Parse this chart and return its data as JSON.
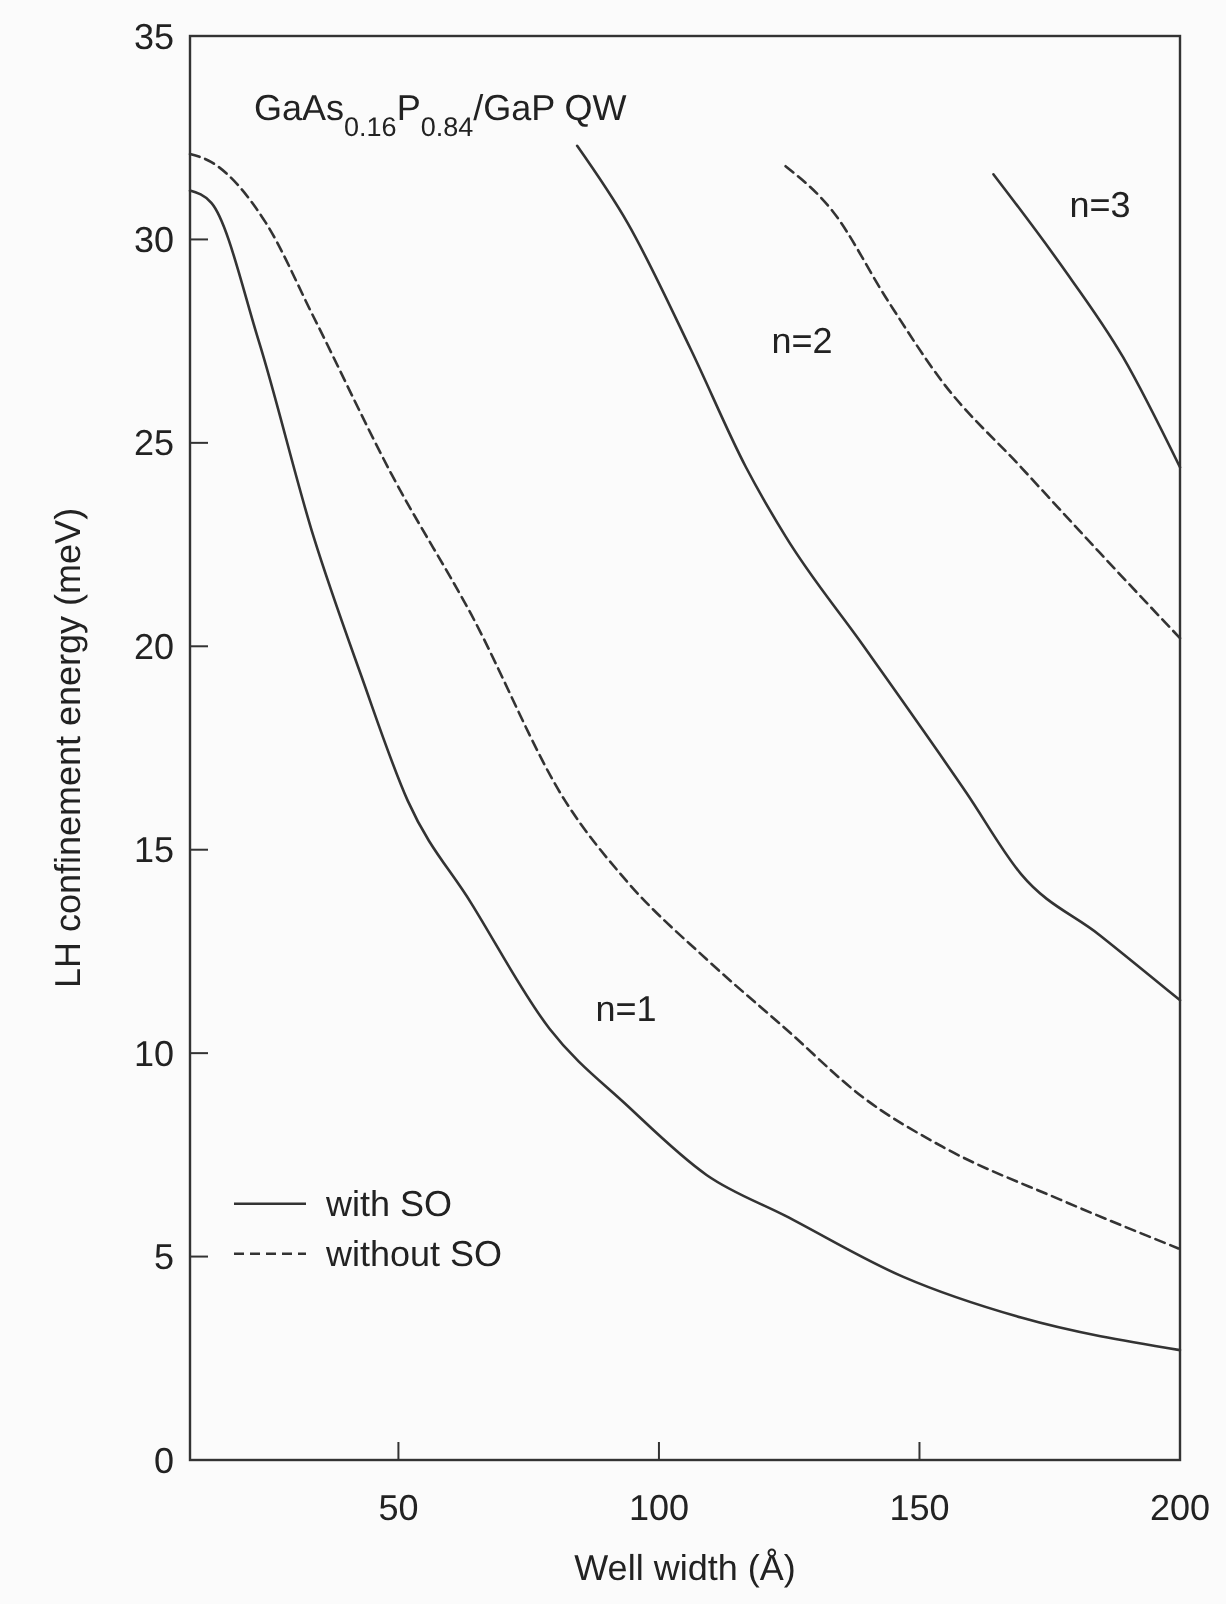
{
  "chart_data": {
    "type": "line",
    "title": "GaAs$_{0.16}$P$_{0.84}$/GaP QW",
    "xlabel": "Well width (Å)",
    "ylabel": "LH confinement energy (meV)",
    "xlim": [
      10,
      200
    ],
    "xticks": [
      50,
      100,
      150,
      200
    ],
    "ylim": [
      0,
      35
    ],
    "yticks": [
      0,
      5,
      10,
      15,
      20,
      25,
      30,
      35
    ],
    "grid": false,
    "legend": "bottom left",
    "series": [
      {
        "name": "with SO",
        "color": "#333333",
        "line_style": "solid",
        "x": [
          10,
          14.1,
          23.2,
          33.7,
          42.8,
          51.8,
          63.9,
          79,
          94,
          109.2,
          124.3,
          146.9,
          169.5,
          200
        ],
        "values": [
          31.2,
          30.9,
          27.5,
          22.7,
          19.3,
          16.2,
          13.7,
          10.6,
          8.7,
          7.0,
          6.0,
          4.5,
          3.5,
          2.7
        ]
      },
      {
        "name": "without SO",
        "color": "#333333",
        "line_style": "dashed",
        "x": [
          10,
          14.1,
          24.6,
          33.7,
          48.8,
          63.9,
          82,
          94,
          109.2,
          124.3,
          139.3,
          154.4,
          177,
          199.7
        ],
        "values": [
          32.1,
          31.9,
          30.4,
          28.1,
          24.2,
          20.8,
          16.2,
          14.2,
          12.3,
          10.6,
          8.9,
          7.7,
          6.4,
          5.2
        ]
      },
      {
        "color": "#333333",
        "line_style": "solid",
        "x": [
          84.3,
          94,
          106.1,
          116.7,
          124.3,
          139.3,
          159,
          169.5,
          184.6,
          200
        ],
        "values": [
          32.3,
          30.4,
          27.3,
          24.4,
          22.7,
          20.0,
          16.4,
          14.4,
          12.9,
          11.3
        ]
      },
      {
        "color": "#333333",
        "line_style": "dashed",
        "x": [
          124.3,
          133.3,
          143.9,
          154.4,
          169.5,
          184.6,
          200
        ],
        "values": [
          31.8,
          30.7,
          28.5,
          26.5,
          24.4,
          22.3,
          20.2
        ]
      },
      {
        "color": "#333333",
        "line_style": "solid",
        "x": [
          164.2,
          177,
          189.1,
          200
        ],
        "values": [
          31.6,
          29.4,
          27.1,
          24.4
        ]
      }
    ],
    "annotations": [
      "n=1",
      "n=2",
      "n=3"
    ]
  }
}
